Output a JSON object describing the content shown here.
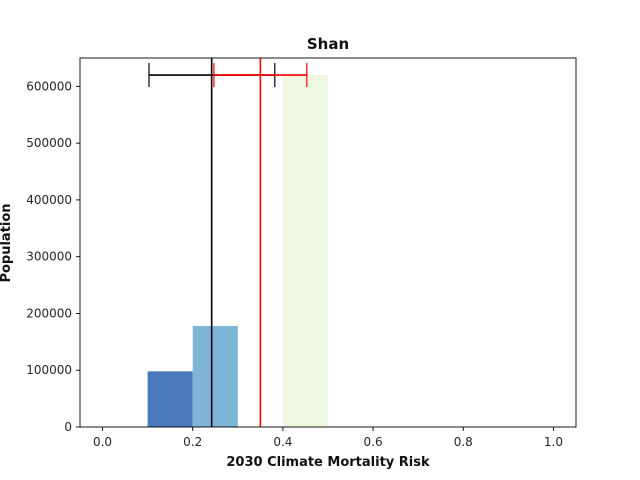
{
  "chart_data": {
    "type": "bar",
    "title": "Shan",
    "xlabel": "2030 Climate Mortality Risk",
    "ylabel": "Population",
    "xlim": [
      -0.05,
      1.05
    ],
    "ylim": [
      0,
      650000
    ],
    "xticks": [
      "0.0",
      "0.2",
      "0.4",
      "0.6",
      "0.8",
      "1.0"
    ],
    "yticks": [
      "0",
      "100000",
      "200000",
      "300000",
      "400000",
      "500000",
      "600000"
    ],
    "bars": [
      {
        "x0": 0.1,
        "x1": 0.2,
        "value": 98000,
        "color": "#4a7ab9"
      },
      {
        "x0": 0.2,
        "x1": 0.3,
        "value": 178000,
        "color": "#7eb4d8"
      },
      {
        "x0": 0.4,
        "x1": 0.5,
        "value": 620000,
        "color": "#eef7df"
      }
    ],
    "reference_lines": [
      {
        "x": 0.242,
        "color": "#000000",
        "interval": [
          0.103,
          0.382
        ],
        "interval_y": 620000
      },
      {
        "x": 0.35,
        "color": "#ff0000",
        "interval": [
          0.247,
          0.453
        ],
        "interval_y": 620000
      }
    ]
  }
}
